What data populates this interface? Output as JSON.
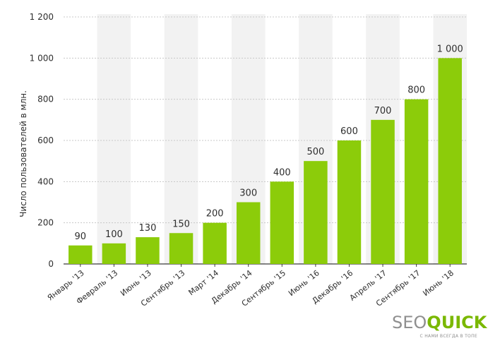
{
  "chart_data": {
    "type": "bar",
    "categories": [
      "Январь '13",
      "Февраль '13",
      "Июнь '13",
      "Сентябрь '13",
      "Март '14",
      "Декабрь '14",
      "Сентябрь '15",
      "Июнь '16",
      "Декабрь '16",
      "Апрель '17",
      "Сентябрь '17",
      "Июнь '18"
    ],
    "values": [
      90,
      100,
      130,
      150,
      200,
      300,
      400,
      500,
      600,
      700,
      800,
      1000
    ],
    "value_labels": [
      "90",
      "100",
      "130",
      "150",
      "200",
      "300",
      "400",
      "500",
      "600",
      "700",
      "800",
      "1 000"
    ],
    "ylabel": "Число пользователей в млн.",
    "xlabel": "",
    "ylim": [
      0,
      1200
    ],
    "yticks": [
      0,
      200,
      400,
      600,
      800,
      1000,
      1200
    ],
    "ytick_labels": [
      "0",
      "200",
      "400",
      "600",
      "800",
      "1 000",
      "1 200"
    ],
    "grid": "horizontal dashed",
    "alternating_column_shading": true,
    "bar_color": "#8ccc0a",
    "shade_color": "#f2f2f2"
  },
  "logo": {
    "seo": "SEO",
    "quick": "QUICK",
    "tagline": "С НАМИ ВСЕГДА В ТОПЕ",
    "seo_color": "#8f8f8f",
    "quick_color": "#7ab800"
  }
}
